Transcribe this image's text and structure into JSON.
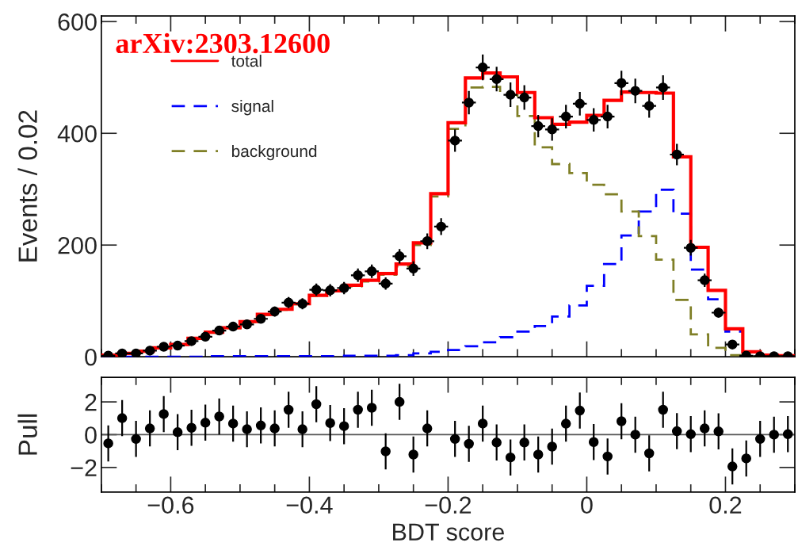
{
  "chart_data": [
    {
      "type": "histogram",
      "ylabel": "Events / 0.02",
      "xlim": [
        -0.7,
        0.3
      ],
      "xticks": [
        -0.6,
        -0.4,
        -0.2,
        0,
        0.2
      ],
      "ylim": [
        0,
        610
      ],
      "yticks": [
        0,
        200,
        400,
        600
      ],
      "tick_labels": "y",
      "legend": "top left",
      "annotations": [
        "arXiv:2303.12600"
      ],
      "series": [
        {
          "name": "total",
          "type": "histogram",
          "color": "#ff0000",
          "line_style": "solid",
          "bins": [
            -0.7,
            -0.675,
            -0.65,
            -0.625,
            -0.6,
            -0.575,
            -0.55,
            -0.525,
            -0.5,
            -0.475,
            -0.45,
            -0.425,
            -0.4,
            -0.375,
            -0.35,
            -0.325,
            -0.3,
            -0.275,
            -0.25,
            -0.225,
            -0.2,
            -0.175,
            -0.15,
            -0.125,
            -0.1,
            -0.075,
            -0.05,
            -0.025,
            0,
            0.025,
            0.05,
            0.075,
            0.1,
            0.125,
            0.15,
            0.175,
            0.2,
            0.225,
            0.25,
            0.275,
            0.3
          ],
          "values": [
            3,
            6,
            10,
            16,
            22,
            33,
            44,
            52,
            63,
            76,
            85,
            95,
            110,
            118,
            128,
            137,
            149,
            166,
            204,
            292,
            419,
            499,
            508,
            501,
            473,
            428,
            416,
            420,
            432,
            459,
            474,
            473,
            472,
            358,
            196,
            119,
            50,
            9,
            3,
            2
          ]
        },
        {
          "name": "signal",
          "type": "histogram",
          "color": "#0000ff",
          "line_style": "dashed",
          "bins": [
            -0.7,
            -0.675,
            -0.65,
            -0.625,
            -0.6,
            -0.575,
            -0.55,
            -0.525,
            -0.5,
            -0.475,
            -0.45,
            -0.425,
            -0.4,
            -0.375,
            -0.35,
            -0.325,
            -0.3,
            -0.275,
            -0.25,
            -0.225,
            -0.2,
            -0.175,
            -0.15,
            -0.125,
            -0.1,
            -0.075,
            -0.05,
            -0.025,
            0,
            0.025,
            0.05,
            0.075,
            0.1,
            0.125,
            0.15,
            0.175,
            0.2,
            0.225,
            0.25,
            0.275,
            0.3
          ],
          "values": [
            0,
            0,
            0,
            0,
            0,
            0,
            1,
            1,
            1,
            1,
            1,
            1,
            1,
            1,
            2,
            2,
            2,
            3,
            6,
            9,
            12,
            19,
            26,
            35,
            45,
            55,
            72,
            92,
            127,
            166,
            217,
            260,
            299,
            256,
            156,
            103,
            45,
            9,
            3,
            1
          ]
        },
        {
          "name": "background",
          "type": "histogram",
          "color": "#7f7f26",
          "line_style": "dashed",
          "bins": [
            -0.7,
            -0.675,
            -0.65,
            -0.625,
            -0.6,
            -0.575,
            -0.55,
            -0.525,
            -0.5,
            -0.475,
            -0.45,
            -0.425,
            -0.4,
            -0.375,
            -0.35,
            -0.325,
            -0.3,
            -0.275,
            -0.25,
            -0.225,
            -0.2,
            -0.175,
            -0.15,
            -0.125,
            -0.1,
            -0.075,
            -0.05,
            -0.025,
            0,
            0.025,
            0.05,
            0.075,
            0.1,
            0.125,
            0.15,
            0.175,
            0.2,
            0.225,
            0.25,
            0.275,
            0.3
          ],
          "values": [
            3,
            6,
            10,
            16,
            22,
            33,
            43,
            51,
            62,
            75,
            84,
            94,
            109,
            117,
            126,
            135,
            147,
            162,
            200,
            287,
            408,
            482,
            483,
            469,
            431,
            375,
            345,
            329,
            308,
            291,
            260,
            216,
            174,
            102,
            40,
            16,
            3,
            0,
            0,
            0
          ]
        },
        {
          "type": "scatter",
          "color": "#000000",
          "marker": "circle",
          "x": [
            -0.69,
            -0.67,
            -0.65,
            -0.63,
            -0.61,
            -0.59,
            -0.57,
            -0.55,
            -0.53,
            -0.51,
            -0.49,
            -0.47,
            -0.45,
            -0.43,
            -0.41,
            -0.39,
            -0.37,
            -0.35,
            -0.33,
            -0.31,
            -0.29,
            -0.27,
            -0.25,
            -0.23,
            -0.21,
            -0.19,
            -0.17,
            -0.15,
            -0.13,
            -0.11,
            -0.09,
            -0.07,
            -0.05,
            -0.03,
            -0.01,
            0.01,
            0.03,
            0.05,
            0.07,
            0.09,
            0.11,
            0.13,
            0.15,
            0.17,
            0.19,
            0.21,
            0.23,
            0.25,
            0.27,
            0.29
          ],
          "values": [
            2,
            6,
            6,
            11,
            18,
            20,
            28,
            36,
            47,
            54,
            58,
            68,
            81,
            97,
            95,
            120,
            119,
            123,
            146,
            153,
            131,
            180,
            158,
            207,
            233,
            387,
            455,
            518,
            497,
            469,
            464,
            413,
            407,
            430,
            453,
            424,
            430,
            490,
            476,
            449,
            482,
            362,
            195,
            137,
            79,
            22,
            2,
            1,
            1,
            1
          ],
          "errors": [
            1,
            2,
            2,
            3,
            4,
            4,
            5,
            6,
            7,
            7,
            8,
            8,
            9,
            10,
            10,
            11,
            11,
            11,
            12,
            12,
            11,
            13,
            13,
            14,
            15,
            20,
            21,
            23,
            22,
            22,
            22,
            20,
            20,
            21,
            21,
            21,
            21,
            22,
            22,
            21,
            22,
            19,
            14,
            12,
            9,
            5,
            1,
            1,
            1,
            1
          ],
          "xerrors": [
            0.01,
            0.01,
            0.01,
            0.01,
            0.01,
            0.01,
            0.01,
            0.01,
            0.01,
            0.01,
            0.01,
            0.01,
            0.01,
            0.01,
            0.01,
            0.01,
            0.01,
            0.01,
            0.01,
            0.01,
            0.01,
            0.01,
            0.01,
            0.01,
            0.01,
            0.01,
            0.01,
            0.01,
            0.01,
            0.01,
            0.01,
            0.01,
            0.01,
            0.01,
            0.01,
            0.01,
            0.01,
            0.01,
            0.01,
            0.01,
            0.01,
            0.01,
            0.01,
            0.01,
            0.01,
            0.01,
            0.01,
            0.01,
            0.01,
            0.01
          ]
        }
      ]
    },
    {
      "type": "scatter",
      "xlabel": "BDT score",
      "ylabel": "Pull",
      "xlim": [
        -0.7,
        0.3
      ],
      "xticks": [
        {
          "value": -0.6,
          "label": "−0.6"
        },
        {
          "value": -0.4,
          "label": "−0.4"
        },
        {
          "value": -0.2,
          "label": "−0.2"
        },
        0,
        0.2
      ],
      "ylim": [
        -3.5,
        3.5
      ],
      "yticks": [
        {
          "value": -2,
          "label": "−2"
        },
        0,
        2
      ],
      "marker": "circle",
      "ref_lines": [
        {
          "axis": "y",
          "value": 0,
          "color": "#555555"
        }
      ],
      "series": [
        {
          "color": "#000000",
          "x": [
            -0.69,
            -0.67,
            -0.65,
            -0.63,
            -0.61,
            -0.59,
            -0.57,
            -0.55,
            -0.53,
            -0.51,
            -0.49,
            -0.47,
            -0.45,
            -0.43,
            -0.41,
            -0.39,
            -0.37,
            -0.35,
            -0.33,
            -0.31,
            -0.29,
            -0.27,
            -0.25,
            -0.23,
            -0.21,
            -0.19,
            -0.17,
            -0.15,
            -0.13,
            -0.11,
            -0.09,
            -0.07,
            -0.05,
            -0.03,
            -0.01,
            0.01,
            0.03,
            0.05,
            0.07,
            0.09,
            0.11,
            0.13,
            0.15,
            0.17,
            0.19,
            0.21,
            0.23,
            0.25,
            0.27,
            0.29
          ],
          "values": [
            -0.53,
            1.01,
            -0.26,
            0.38,
            1.26,
            0.15,
            0.42,
            0.73,
            1.11,
            0.68,
            0.33,
            0.56,
            0.38,
            1.52,
            0.33,
            1.86,
            0.71,
            0.52,
            1.52,
            1.64,
            -1.02,
            2.0,
            -1.21,
            0.38,
            null,
            -0.26,
            -0.56,
            0.68,
            -0.48,
            -1.39,
            -0.48,
            -1.21,
            -0.73,
            0.67,
            1.47,
            -0.45,
            -1.33,
            0.82,
            0,
            -1.14,
            1.52,
            0.21,
            0.03,
            0.38,
            0.2,
            -1.94,
            -1.45,
            -0.26,
            0,
            0.03
          ],
          "errors": [
            1.1,
            1.1,
            1.1,
            1.1,
            1.1,
            1.1,
            1.1,
            1.1,
            1.1,
            1.1,
            1.1,
            1.1,
            1.1,
            1.1,
            1.1,
            1.1,
            1.1,
            1.1,
            1.1,
            1.1,
            1.1,
            1.1,
            1.1,
            1.1,
            null,
            1.1,
            1.1,
            1.1,
            1.1,
            1.1,
            1.1,
            1.1,
            1.1,
            1.1,
            1.1,
            1.1,
            1.1,
            1.1,
            1.1,
            1.1,
            1.1,
            1.1,
            1.1,
            1.1,
            1.1,
            1.1,
            1.1,
            1.1,
            1.1,
            1.1
          ]
        }
      ]
    }
  ]
}
